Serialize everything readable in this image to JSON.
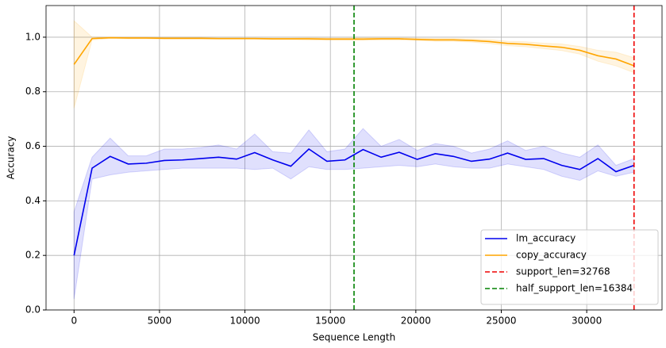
{
  "chart_data": {
    "type": "line",
    "xlabel": "Sequence Length",
    "ylabel": "Accuracy",
    "x": [
      0,
      1057,
      2114,
      3171,
      4228,
      5285,
      6342,
      7399,
      8456,
      9513,
      10570,
      11627,
      12684,
      13741,
      14798,
      15855,
      16912,
      17969,
      19026,
      20083,
      21140,
      22197,
      23254,
      24311,
      25368,
      26425,
      27482,
      28539,
      29596,
      30653,
      31710,
      32768
    ],
    "series": [
      {
        "name": "lm_accuracy",
        "color": "#0000ee",
        "values": [
          0.2,
          0.52,
          0.563,
          0.535,
          0.538,
          0.548,
          0.55,
          0.555,
          0.56,
          0.553,
          0.577,
          0.55,
          0.527,
          0.59,
          0.545,
          0.55,
          0.588,
          0.56,
          0.578,
          0.552,
          0.573,
          0.563,
          0.545,
          0.553,
          0.575,
          0.552,
          0.555,
          0.53,
          0.515,
          0.555,
          0.507,
          0.53
        ],
        "lower": [
          0.04,
          0.48,
          0.495,
          0.505,
          0.51,
          0.515,
          0.52,
          0.52,
          0.52,
          0.52,
          0.515,
          0.52,
          0.48,
          0.525,
          0.515,
          0.515,
          0.52,
          0.525,
          0.53,
          0.525,
          0.535,
          0.525,
          0.52,
          0.52,
          0.535,
          0.525,
          0.515,
          0.49,
          0.475,
          0.51,
          0.49,
          0.505
        ],
        "upper": [
          0.36,
          0.56,
          0.63,
          0.565,
          0.565,
          0.59,
          0.59,
          0.595,
          0.605,
          0.59,
          0.645,
          0.58,
          0.575,
          0.66,
          0.58,
          0.59,
          0.665,
          0.6,
          0.625,
          0.585,
          0.61,
          0.6,
          0.575,
          0.59,
          0.62,
          0.585,
          0.6,
          0.575,
          0.56,
          0.605,
          0.53,
          0.555
        ]
      },
      {
        "name": "copy_accuracy",
        "color": "#ffa500",
        "values": [
          0.9,
          0.995,
          0.998,
          0.997,
          0.997,
          0.996,
          0.996,
          0.996,
          0.995,
          0.995,
          0.995,
          0.994,
          0.994,
          0.994,
          0.993,
          0.993,
          0.993,
          0.994,
          0.994,
          0.992,
          0.99,
          0.99,
          0.988,
          0.984,
          0.977,
          0.974,
          0.968,
          0.963,
          0.952,
          0.932,
          0.92,
          0.895
        ],
        "lower": [
          0.74,
          0.99,
          0.995,
          0.994,
          0.994,
          0.993,
          0.993,
          0.993,
          0.992,
          0.992,
          0.992,
          0.991,
          0.991,
          0.99,
          0.989,
          0.989,
          0.988,
          0.99,
          0.99,
          0.988,
          0.985,
          0.985,
          0.982,
          0.977,
          0.969,
          0.965,
          0.958,
          0.951,
          0.938,
          0.912,
          0.895,
          0.87
        ],
        "upper": [
          1.06,
          1.0,
          1.0,
          1.0,
          1.0,
          0.999,
          0.999,
          0.999,
          0.998,
          0.998,
          0.998,
          0.997,
          0.997,
          0.998,
          0.997,
          0.997,
          0.998,
          0.998,
          0.998,
          0.996,
          0.995,
          0.995,
          0.994,
          0.991,
          0.985,
          0.983,
          0.978,
          0.975,
          0.966,
          0.952,
          0.945,
          0.925
        ]
      }
    ],
    "vlines": [
      {
        "name": "support_len=32768",
        "color": "#ee0000",
        "x": 32768
      },
      {
        "name": "half_support_len=16384",
        "color": "#008000",
        "x": 16384
      }
    ],
    "xlim": [
      -1638.4,
      34406.4
    ],
    "ylim": [
      0,
      1.116
    ],
    "xticks": [
      0,
      5000,
      10000,
      15000,
      20000,
      25000,
      30000
    ],
    "yticks": [
      {
        "value": 0,
        "label": "0.0"
      },
      0.2,
      0.4,
      0.6,
      0.8,
      {
        "value": 1,
        "label": "1.0"
      }
    ],
    "grid": true,
    "legend": "lower right"
  }
}
